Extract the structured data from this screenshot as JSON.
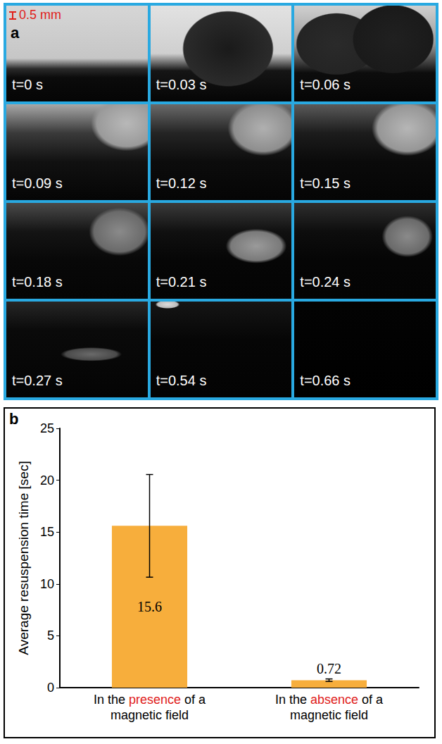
{
  "panel_a": {
    "label": "a",
    "scale_bar": "0.5 mm",
    "frames": [
      "t=0 s",
      "t=0.03 s",
      "t=0.06 s",
      "t=0.09 s",
      "t=0.12 s",
      "t=0.15 s",
      "t=0.18 s",
      "t=0.21 s",
      "t=0.24 s",
      "t=0.27 s",
      "t=0.54 s",
      "t=0.66 s"
    ]
  },
  "chart_data": {
    "label": "b",
    "type": "bar",
    "categories": [
      "In the presence of a magnetic field",
      "In the absence of a magnetic field"
    ],
    "values": [
      15.6,
      0.72
    ],
    "errors": [
      4.95,
      0.12
    ],
    "color": "#f7ae3c",
    "ylabel": "Average resuspension time [sec]",
    "ylim": [
      0,
      25
    ],
    "yticks": [
      0,
      5,
      10,
      15,
      20,
      25
    ],
    "grid": false,
    "data_labels": true
  }
}
